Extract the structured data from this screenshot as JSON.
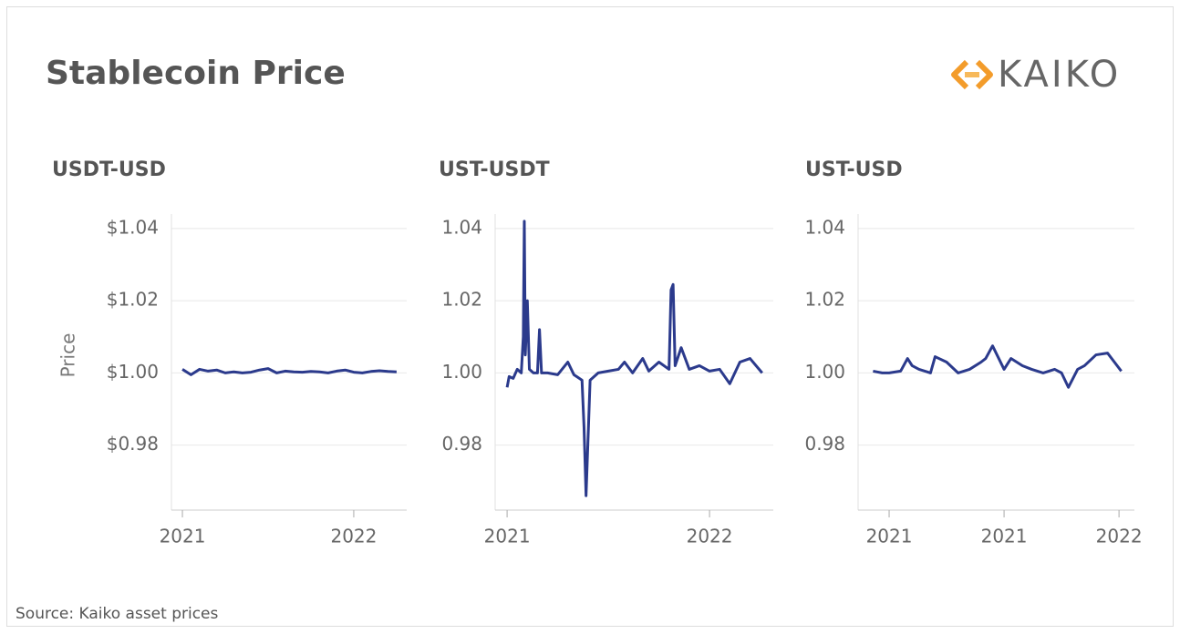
{
  "title": "Stablecoin Price",
  "logo": "KAIKO",
  "source": "Source: Kaiko asset prices",
  "chart_data": [
    {
      "type": "line",
      "title": "USDT-USD",
      "ylabel": "Price",
      "grid": true,
      "xlim": [
        2020.936,
        2022.309
      ],
      "xticks": [
        2021,
        2022
      ],
      "ylim": [
        0.962,
        1.044
      ],
      "yticks": [
        {
          "value": 0.98,
          "label": "$0.98"
        },
        {
          "value": 1,
          "label": "$1.00"
        },
        {
          "value": 1.02,
          "label": "$1.02"
        },
        {
          "value": 1.04,
          "label": "$1.04"
        }
      ],
      "series": [
        {
          "color": "#2b3a8c",
          "x": [
            2021.0,
            2021.05,
            2021.1,
            2021.15,
            2021.2,
            2021.25,
            2021.3,
            2021.35,
            2021.4,
            2021.45,
            2021.5,
            2021.55,
            2021.6,
            2021.65,
            2021.7,
            2021.75,
            2021.8,
            2021.85,
            2021.9,
            2021.95,
            2022.0,
            2022.05,
            2022.1,
            2022.15,
            2022.2,
            2022.25
          ],
          "values": [
            1.001,
            0.9995,
            1.001,
            1.0005,
            1.0008,
            1.0,
            1.0003,
            1.0,
            1.0002,
            1.0008,
            1.0012,
            1.0,
            1.0005,
            1.0003,
            1.0002,
            1.0004,
            1.0003,
            1.0,
            1.0005,
            1.0008,
            1.0002,
            1.0,
            1.0004,
            1.0006,
            1.0004,
            1.0003
          ]
        }
      ]
    },
    {
      "type": "line",
      "title": "UST-USDT",
      "grid": true,
      "xlim": [
        2020.941,
        2022.315
      ],
      "xticks": [
        2021,
        2022
      ],
      "ylim": [
        0.962,
        1.044
      ],
      "yticks": [
        0.98,
        {
          "value": 1,
          "label": "1.00"
        },
        1.02,
        1.04
      ],
      "series": [
        {
          "color": "#2b3a8c",
          "x": [
            2021.0,
            2021.01,
            2021.03,
            2021.05,
            2021.07,
            2021.08,
            2021.085,
            2021.09,
            2021.1,
            2021.11,
            2021.13,
            2021.15,
            2021.16,
            2021.17,
            2021.2,
            2021.25,
            2021.3,
            2021.33,
            2021.37,
            2021.38,
            2021.39,
            2021.41,
            2021.45,
            2021.5,
            2021.55,
            2021.58,
            2021.62,
            2021.67,
            2021.7,
            2021.75,
            2021.8,
            2021.81,
            2021.82,
            2021.83,
            2021.86,
            2021.9,
            2021.95,
            2022.0,
            2022.05,
            2022.1,
            2022.15,
            2022.2,
            2022.26
          ],
          "values": [
            0.996,
            0.999,
            0.9985,
            1.001,
            1.0,
            1.01,
            1.042,
            1.005,
            1.02,
            1.001,
            1.0,
            1.0,
            1.012,
            1.0,
            1.0,
            0.9995,
            1.003,
            0.9995,
            0.998,
            0.985,
            0.966,
            0.998,
            1.0,
            1.0005,
            1.001,
            1.003,
            1.0,
            1.004,
            1.0005,
            1.003,
            1.001,
            1.023,
            1.0245,
            1.002,
            1.007,
            1.001,
            1.002,
            1.0005,
            1.001,
            0.997,
            1.003,
            1.004,
            1.0
          ]
        }
      ]
    },
    {
      "type": "line",
      "title": "UST-USD",
      "grid": true,
      "xlim": [
        2020.865,
        2022.067
      ],
      "xticks": [
        2021,
        {
          "value": 2021.5,
          "label": "2021"
        },
        2022
      ],
      "ylim": [
        0.962,
        1.044
      ],
      "yticks": [
        0.98,
        {
          "value": 1,
          "label": "1.00"
        },
        1.02,
        1.04
      ],
      "series": [
        {
          "color": "#2b3a8c",
          "x": [
            2020.93,
            2020.97,
            2021.0,
            2021.05,
            2021.08,
            2021.1,
            2021.13,
            2021.18,
            2021.2,
            2021.25,
            2021.3,
            2021.35,
            2021.4,
            2021.42,
            2021.45,
            2021.5,
            2021.53,
            2021.58,
            2021.62,
            2021.67,
            2021.72,
            2021.75,
            2021.78,
            2021.82,
            2021.85,
            2021.9,
            2021.95,
            2021.98,
            2022.01
          ],
          "values": [
            1.0005,
            1.0,
            1.0,
            1.0005,
            1.004,
            1.002,
            1.001,
            1.0,
            1.0045,
            1.003,
            1.0,
            1.001,
            1.003,
            1.004,
            1.0075,
            1.001,
            1.004,
            1.002,
            1.001,
            1.0,
            1.001,
            1.0,
            0.996,
            1.001,
            1.002,
            1.005,
            1.0055,
            1.003,
            1.0005
          ]
        }
      ]
    }
  ]
}
